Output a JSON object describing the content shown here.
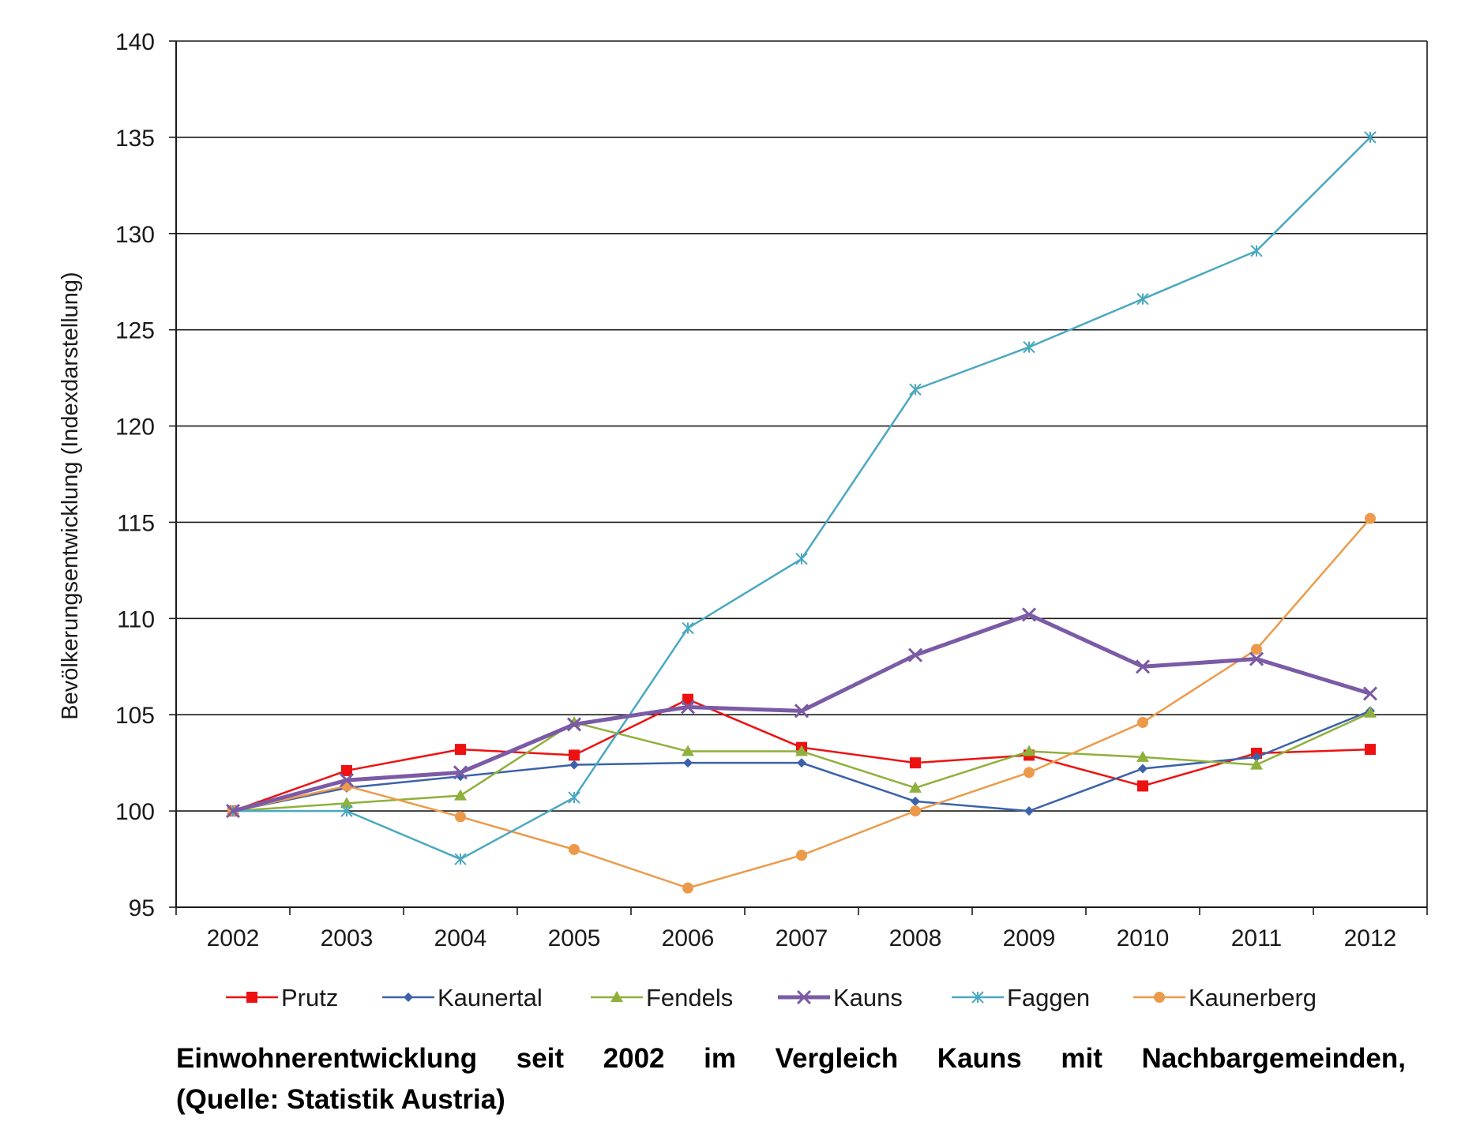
{
  "chart_data": {
    "type": "line",
    "title": "",
    "xlabel": "",
    "ylabel": "Bevölkerungsentwicklung  (Indexdarstellung)",
    "ylim": [
      95,
      140
    ],
    "y_ticks": [
      "95",
      "100",
      "105",
      "110",
      "115",
      "120",
      "125",
      "130",
      "135",
      "140"
    ],
    "categories": [
      "2002",
      "2003",
      "2004",
      "2005",
      "2006",
      "2007",
      "2008",
      "2009",
      "2010",
      "2011",
      "2012"
    ],
    "grid": "horizontal",
    "legend": "bottom",
    "series": [
      {
        "name": "Prutz",
        "color": "#ee1111",
        "marker": "square",
        "width": 2.5,
        "values": [
          100,
          102.1,
          103.2,
          102.9,
          105.8,
          103.3,
          102.5,
          102.9,
          101.3,
          103.0,
          103.2
        ]
      },
      {
        "name": "Kaunertal",
        "color": "#3b62a8",
        "marker": "diamond",
        "width": 2.5,
        "values": [
          100,
          101.2,
          101.8,
          102.4,
          102.5,
          102.5,
          100.5,
          100.0,
          102.2,
          102.8,
          105.2
        ]
      },
      {
        "name": "Fendels",
        "color": "#8fb03c",
        "marker": "triangle",
        "width": 2.5,
        "values": [
          100,
          100.4,
          100.8,
          104.6,
          103.1,
          103.1,
          101.2,
          103.1,
          102.8,
          102.4,
          105.1
        ]
      },
      {
        "name": "Kauns",
        "color": "#7b5aa6",
        "marker": "x",
        "width": 5,
        "values": [
          100,
          101.6,
          102.0,
          104.5,
          105.4,
          105.2,
          108.1,
          110.2,
          107.5,
          107.9,
          106.1
        ]
      },
      {
        "name": "Faggen",
        "color": "#4aa8c0",
        "marker": "star",
        "width": 2.5,
        "values": [
          100,
          100.0,
          97.5,
          100.7,
          109.5,
          113.1,
          121.9,
          124.1,
          126.6,
          129.1,
          135.0
        ]
      },
      {
        "name": "Kaunerberg",
        "color": "#ec9a4a",
        "marker": "circle",
        "width": 2.5,
        "values": [
          100,
          101.3,
          99.7,
          98.0,
          96.0,
          97.7,
          100.0,
          102.0,
          104.6,
          108.4,
          115.2
        ]
      }
    ]
  },
  "caption": {
    "line1": "Einwohnerentwicklung seit 2002 im Vergleich Kauns mit Nachbargemeinden,",
    "line2": "(Quelle: Statistik Austria)"
  }
}
